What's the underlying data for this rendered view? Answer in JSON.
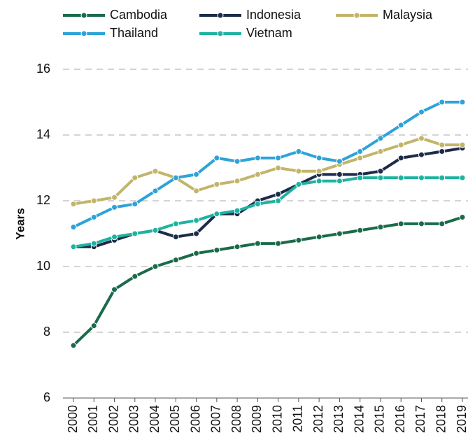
{
  "chart_data": {
    "type": "line",
    "ylabel": "Years",
    "categories": [
      "2000",
      "2001",
      "2002",
      "2003",
      "2004",
      "2005",
      "2006",
      "2007",
      "2008",
      "2009",
      "2010",
      "2011",
      "2012",
      "2013",
      "2014",
      "2015",
      "2016",
      "2017",
      "2018",
      "2019"
    ],
    "series": [
      {
        "name": "Cambodia",
        "color": "#1a6b4a",
        "values": [
          7.6,
          8.2,
          9.3,
          9.7,
          10.0,
          10.2,
          10.4,
          10.5,
          10.6,
          10.7,
          10.7,
          10.8,
          10.9,
          11.0,
          11.1,
          11.2,
          11.3,
          11.3,
          11.3,
          11.5
        ]
      },
      {
        "name": "Indonesia",
        "color": "#1c2b4a",
        "values": [
          10.6,
          10.6,
          10.8,
          11.0,
          11.1,
          10.9,
          11.0,
          11.6,
          11.6,
          12.0,
          12.2,
          12.5,
          12.8,
          12.8,
          12.8,
          12.9,
          13.3,
          13.4,
          13.5,
          13.6
        ]
      },
      {
        "name": "Malaysia",
        "color": "#c2b56a",
        "values": [
          11.9,
          12.0,
          12.1,
          12.7,
          12.9,
          12.7,
          12.3,
          12.5,
          12.6,
          12.8,
          13.0,
          12.9,
          12.9,
          13.1,
          13.3,
          13.5,
          13.7,
          13.9,
          13.7,
          13.7
        ]
      },
      {
        "name": "Thailand",
        "color": "#2ea3d8",
        "values": [
          11.2,
          11.5,
          11.8,
          11.9,
          12.3,
          12.7,
          12.8,
          13.3,
          13.2,
          13.3,
          13.3,
          13.5,
          13.3,
          13.2,
          13.5,
          13.9,
          14.3,
          14.7,
          15.0,
          15.0
        ]
      },
      {
        "name": "Vietnam",
        "color": "#1eb3a0",
        "values": [
          10.6,
          10.7,
          10.9,
          11.0,
          11.1,
          11.3,
          11.4,
          11.6,
          11.7,
          11.9,
          12.0,
          12.5,
          12.6,
          12.6,
          12.7,
          12.7,
          12.7,
          12.7,
          12.7,
          12.7
        ]
      }
    ],
    "ylim": [
      6,
      16
    ],
    "yticks": [
      6,
      8,
      10,
      12,
      14,
      16
    ],
    "grid": true
  }
}
